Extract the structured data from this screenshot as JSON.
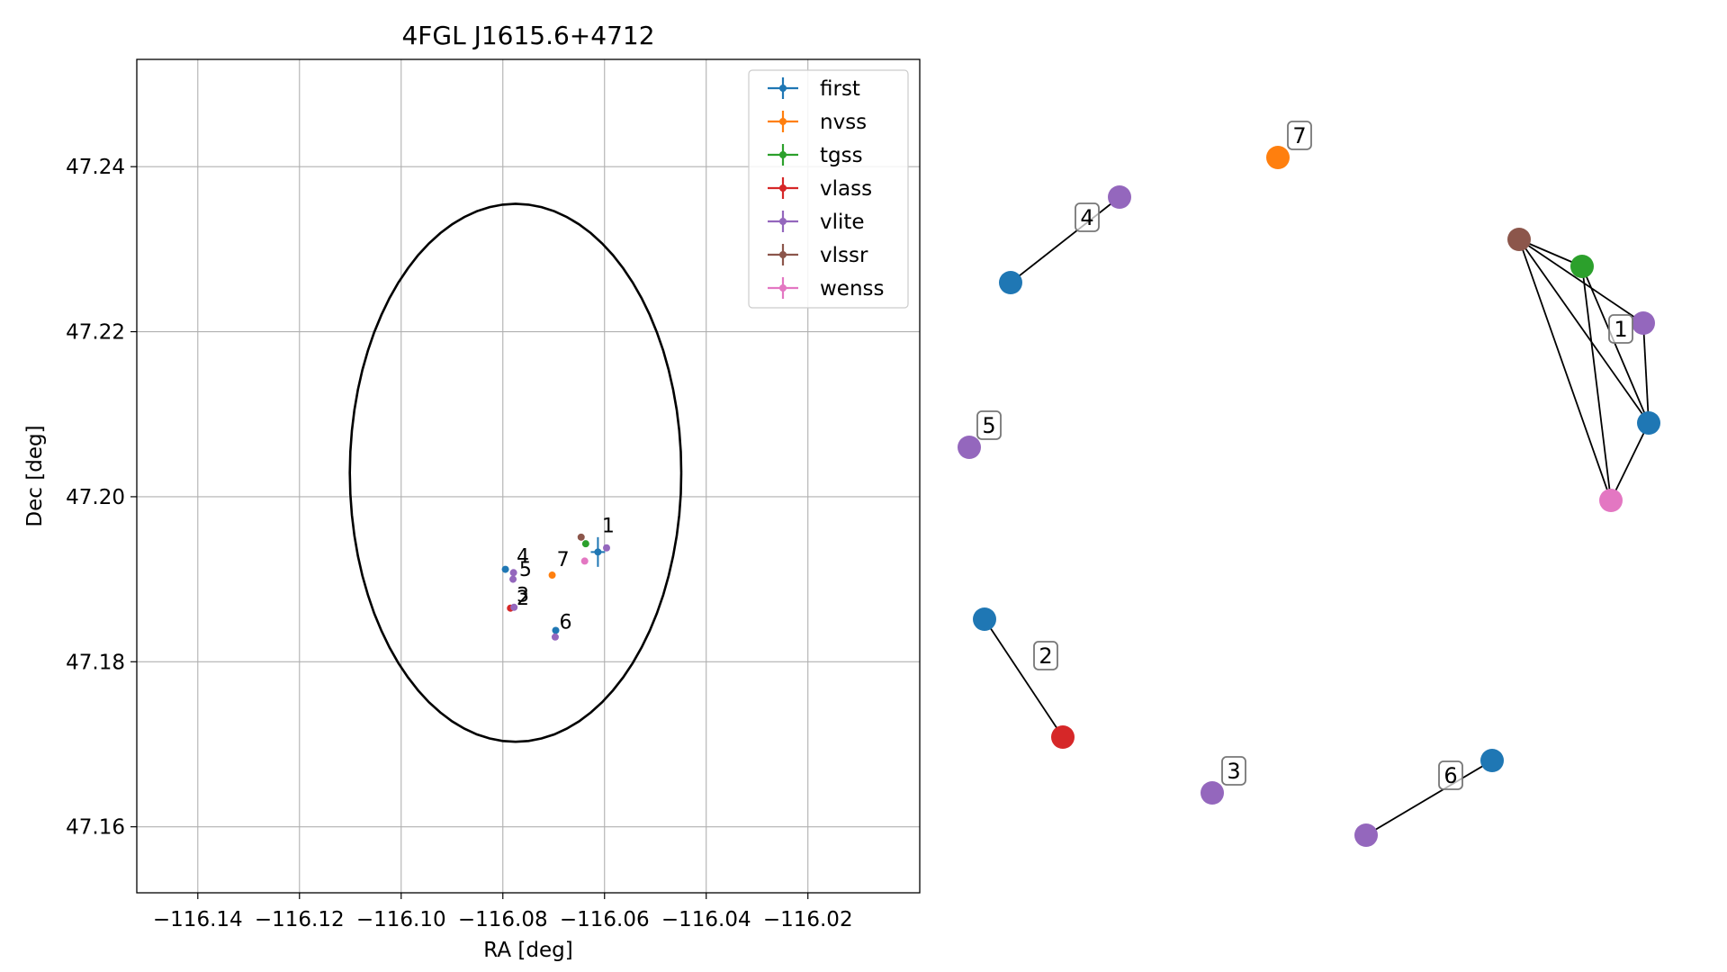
{
  "chart_data": [
    {
      "type": "scatter",
      "title": "4FGL J1615.6+4712",
      "xlabel": "RA [deg]",
      "ylabel": "Dec [deg]",
      "xlim": [
        -116.152,
        -115.998
      ],
      "ylim": [
        47.152,
        47.253
      ],
      "xticks": [
        -116.14,
        -116.12,
        -116.1,
        -116.08,
        -116.06,
        -116.04,
        -116.02
      ],
      "xtick_labels": [
        "−116.14",
        "−116.12",
        "−116.10",
        "−116.08",
        "−116.06",
        "−116.04",
        "−116.02"
      ],
      "yticks": [
        47.16,
        47.18,
        47.2,
        47.22,
        47.24
      ],
      "ytick_labels": [
        "47.16",
        "47.18",
        "47.20",
        "47.22",
        "47.24"
      ],
      "grid": true,
      "legend_position": "top-right",
      "circle": {
        "ra_center": -116.0775,
        "dec_center": 47.2029,
        "radius_deg": 0.0326,
        "color": "#000000"
      },
      "series": [
        {
          "name": "first",
          "color": "#1f77b4",
          "points": [
            {
              "ra": -116.0613,
              "dec": 47.1933,
              "ra_err": 0.0014,
              "dec_err": 0.0018
            },
            {
              "ra": -116.0795,
              "dec": 47.1912
            },
            {
              "ra": -116.0696,
              "dec": 47.1838
            }
          ]
        },
        {
          "name": "nvss",
          "color": "#ff7f0e",
          "points": [
            {
              "ra": -116.0703,
              "dec": 47.1905
            }
          ]
        },
        {
          "name": "tgss",
          "color": "#2ca02c",
          "points": [
            {
              "ra": -116.0637,
              "dec": 47.1943
            }
          ]
        },
        {
          "name": "vlass",
          "color": "#d62728",
          "points": [
            {
              "ra": -116.0785,
              "dec": 47.1865
            }
          ]
        },
        {
          "name": "vlite",
          "color": "#9467bd",
          "points": [
            {
              "ra": -116.0596,
              "dec": 47.1938
            },
            {
              "ra": -116.078,
              "dec": 47.19
            },
            {
              "ra": -116.0779,
              "dec": 47.1908
            },
            {
              "ra": -116.0778,
              "dec": 47.1866
            },
            {
              "ra": -116.0697,
              "dec": 47.183
            }
          ]
        },
        {
          "name": "vlssr",
          "color": "#8c564b",
          "points": [
            {
              "ra": -116.0646,
              "dec": 47.1951
            }
          ]
        },
        {
          "name": "wenss",
          "color": "#e377c2",
          "points": [
            {
              "ra": -116.0639,
              "dec": 47.1922
            }
          ]
        }
      ],
      "annotations": [
        {
          "text": "1",
          "ra": -116.0605,
          "dec": 47.1957
        },
        {
          "text": "4",
          "ra": -116.0773,
          "dec": 47.192
        },
        {
          "text": "5",
          "ra": -116.0768,
          "dec": 47.1904
        },
        {
          "text": "7",
          "ra": -116.0694,
          "dec": 47.1916
        },
        {
          "text": "2",
          "ra": -116.0773,
          "dec": 47.1869
        },
        {
          "text": "3",
          "ra": -116.0773,
          "dec": 47.1873
        },
        {
          "text": "6",
          "ra": -116.0689,
          "dec": 47.184
        }
      ]
    },
    {
      "type": "network",
      "nodes": [
        {
          "id": "g1_brown",
          "color": "#8c564b"
        },
        {
          "id": "g1_green",
          "color": "#2ca02c"
        },
        {
          "id": "g1_purple",
          "color": "#9467bd"
        },
        {
          "id": "g1_blue",
          "color": "#1f77b4"
        },
        {
          "id": "g1_pink",
          "color": "#e377c2"
        },
        {
          "id": "g2_blue",
          "color": "#1f77b4"
        },
        {
          "id": "g2_red",
          "color": "#d62728"
        },
        {
          "id": "g3_purple",
          "color": "#9467bd"
        },
        {
          "id": "g4_blue",
          "color": "#1f77b4"
        },
        {
          "id": "g4_purple",
          "color": "#9467bd"
        },
        {
          "id": "g5_purple",
          "color": "#9467bd"
        },
        {
          "id": "g6_purple",
          "color": "#9467bd"
        },
        {
          "id": "g6_blue",
          "color": "#1f77b4"
        },
        {
          "id": "g7_orange",
          "color": "#ff7f0e"
        }
      ],
      "edges": [
        [
          "g1_brown",
          "g1_green"
        ],
        [
          "g1_brown",
          "g1_purple"
        ],
        [
          "g1_brown",
          "g1_blue"
        ],
        [
          "g1_brown",
          "g1_pink"
        ],
        [
          "g1_green",
          "g1_blue"
        ],
        [
          "g1_green",
          "g1_pink"
        ],
        [
          "g1_purple",
          "g1_blue"
        ],
        [
          "g1_blue",
          "g1_pink"
        ],
        [
          "g2_blue",
          "g2_red"
        ],
        [
          "g4_blue",
          "g4_purple"
        ],
        [
          "g6_purple",
          "g6_blue"
        ]
      ],
      "group_labels": [
        "1",
        "2",
        "3",
        "4",
        "5",
        "6",
        "7"
      ]
    }
  ]
}
